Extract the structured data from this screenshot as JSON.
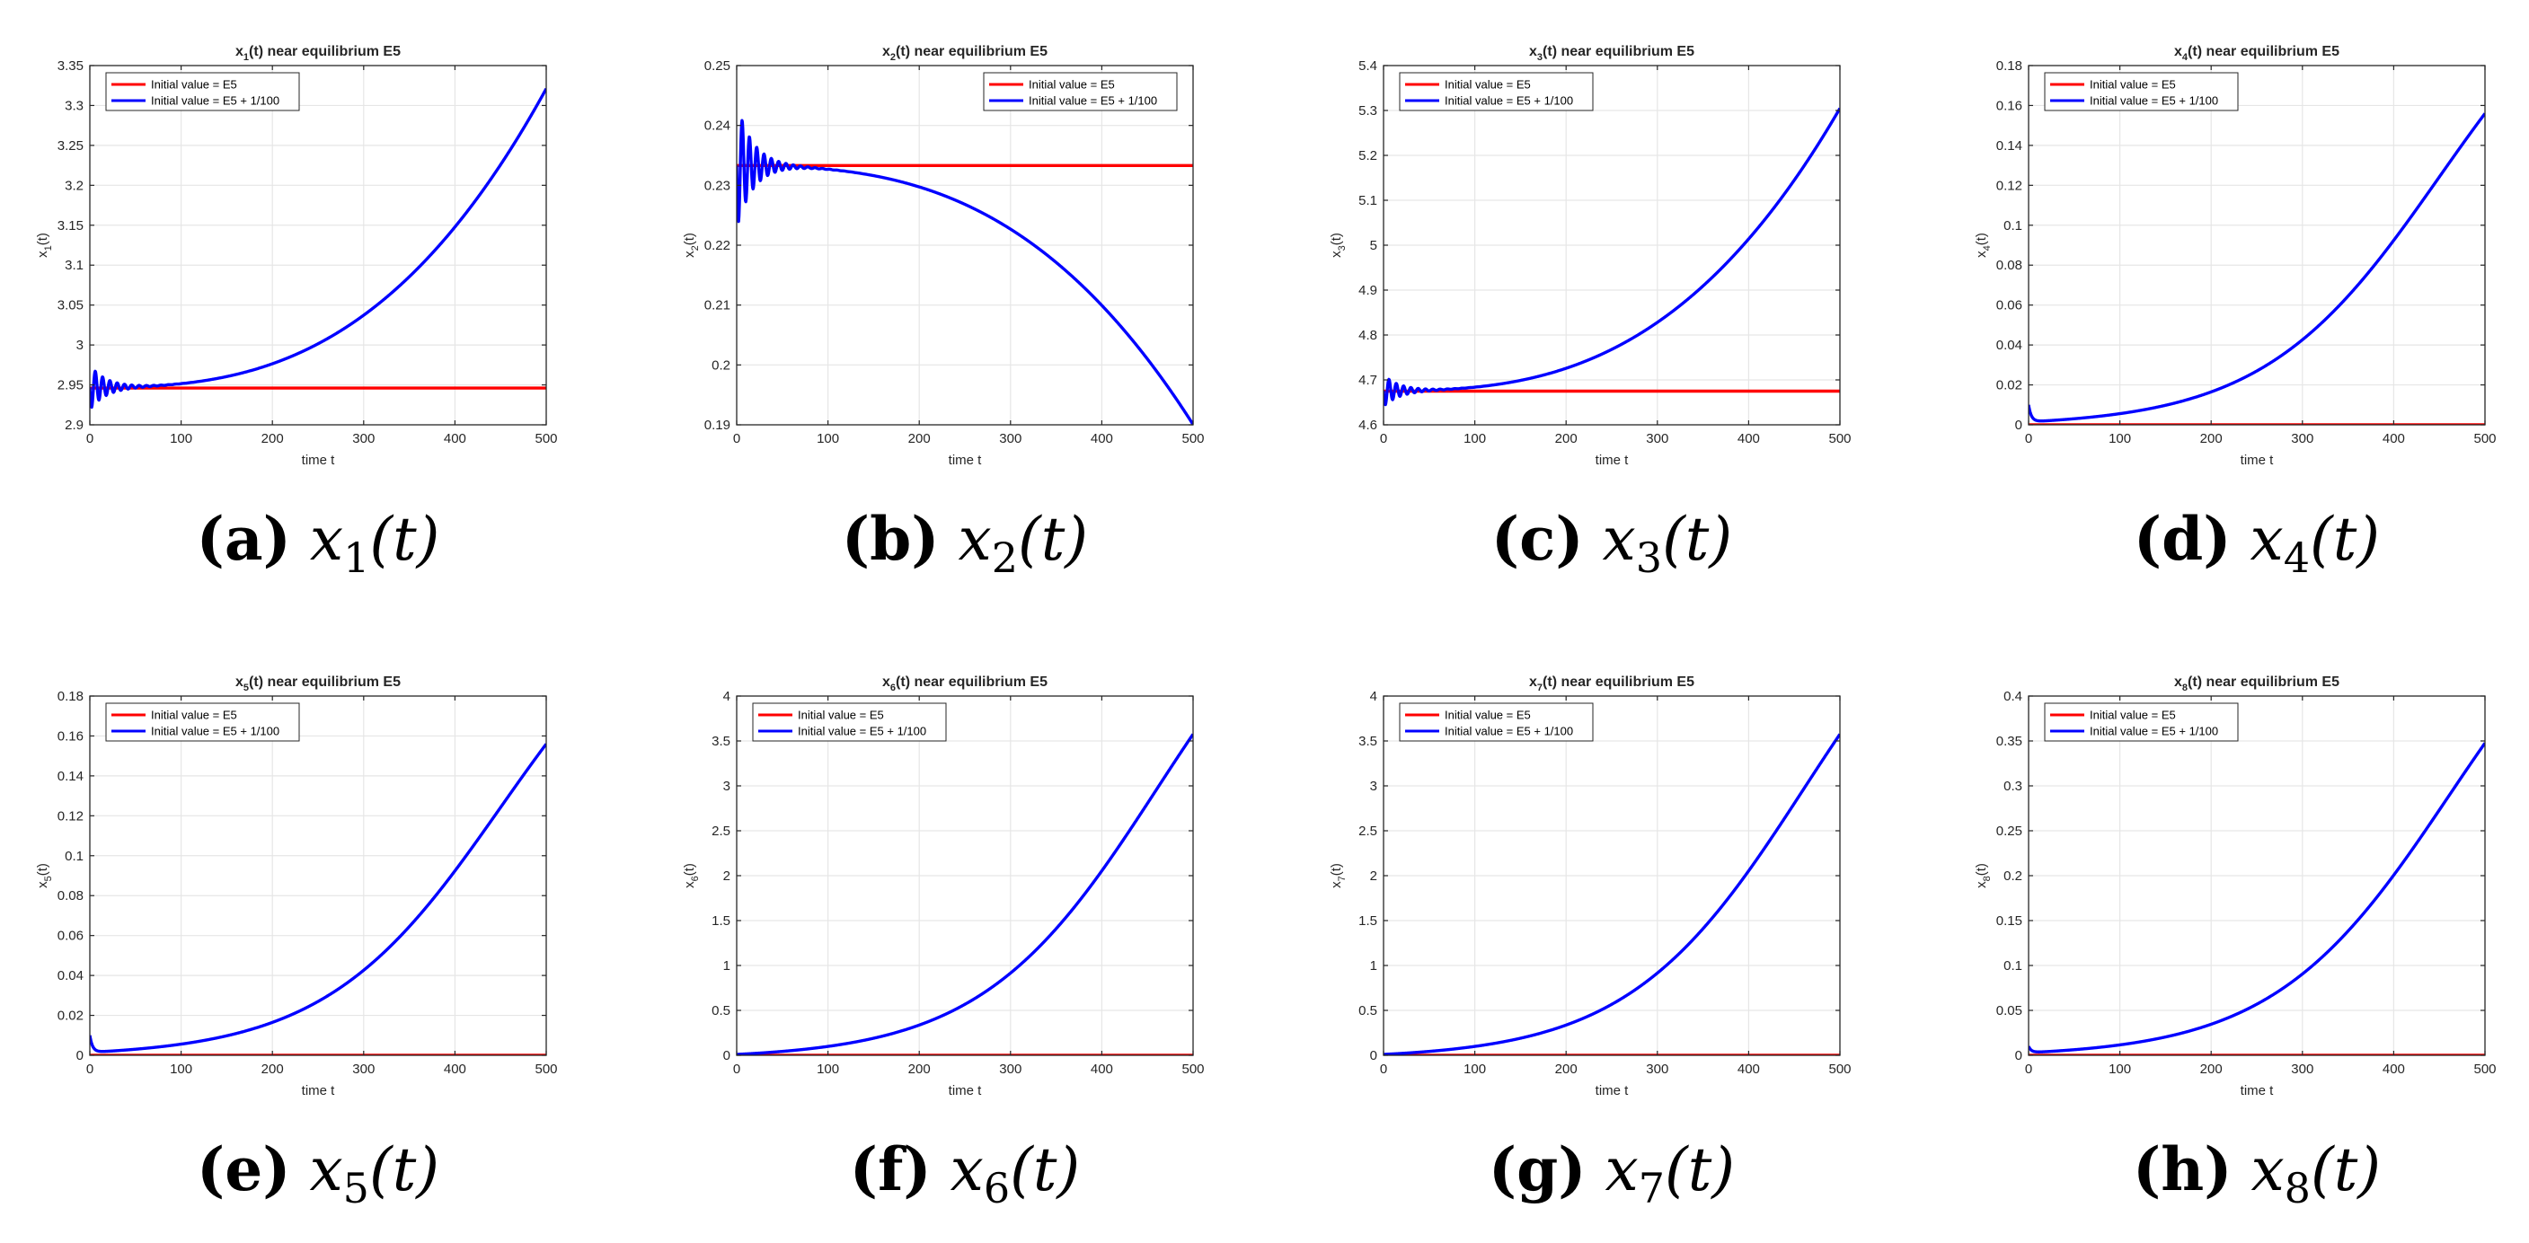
{
  "chart_data": [
    {
      "type": "line",
      "id": "a",
      "title": "x_1(t) near equilibrium E5",
      "title_base": "x",
      "title_sub": "1",
      "title_rest": "(t) near equilibrium E5",
      "xlabel": "time t",
      "ylabel": "x_1(t)",
      "ylabel_base": "x",
      "ylabel_sub": "1",
      "ylabel_rest": "(t)",
      "xlim": [
        0,
        500
      ],
      "ylim": [
        2.9,
        3.35
      ],
      "xticks": [
        0,
        100,
        200,
        300,
        400,
        500
      ],
      "xtick_labels": [
        "0",
        "100",
        "200",
        "300",
        "400",
        "500"
      ],
      "yticks": [
        2.9,
        2.95,
        3,
        3.05,
        3.1,
        3.15,
        3.2,
        3.25,
        3.3,
        3.35
      ],
      "ytick_labels": [
        "2.9",
        "2.95",
        "3",
        "3.05",
        "3.1",
        "3.15",
        "3.2",
        "3.25",
        "3.3",
        "3.35"
      ],
      "grid": true,
      "legend_position": "top-left",
      "caption_letter": "(a)",
      "caption_var": "x",
      "caption_sub": "1",
      "caption_arg": "(t)",
      "series": [
        {
          "name": "Initial value = E5",
          "color": "#ff0000",
          "kind": "const",
          "value": 2.946
        },
        {
          "name": "Initial value = E5 + 1/100",
          "color": "#0000ff",
          "kind": "growth",
          "base": 2.947,
          "slope": 4.5e-06,
          "amp": 0.3718,
          "power": 2.8,
          "osc_amp": 0.028,
          "osc_period": 8,
          "osc_decay": 18
        }
      ]
    },
    {
      "type": "line",
      "id": "b",
      "title": "x_2(t) near equilibrium E5",
      "title_base": "x",
      "title_sub": "2",
      "title_rest": "(t) near equilibrium E5",
      "xlabel": "time t",
      "ylabel": "x_2(t)",
      "ylabel_base": "x",
      "ylabel_sub": "2",
      "ylabel_rest": "(t)",
      "xlim": [
        0,
        500
      ],
      "ylim": [
        0.19,
        0.25
      ],
      "xticks": [
        0,
        100,
        200,
        300,
        400,
        500
      ],
      "xtick_labels": [
        "0",
        "100",
        "200",
        "300",
        "400",
        "500"
      ],
      "yticks": [
        0.19,
        0.2,
        0.21,
        0.22,
        0.23,
        0.24,
        0.25
      ],
      "ytick_labels": [
        "0.19",
        "0.2",
        "0.21",
        "0.22",
        "0.23",
        "0.24",
        "0.25"
      ],
      "grid": true,
      "legend_position": "top-right",
      "caption_letter": "(b)",
      "caption_var": "x",
      "caption_sub": "2",
      "caption_arg": "(t)",
      "series": [
        {
          "name": "Initial value = E5",
          "color": "#ff0000",
          "kind": "const",
          "value": 0.2333
        },
        {
          "name": "Initial value = E5 + 1/100",
          "color": "#0000ff",
          "kind": "growth",
          "base": 0.2333,
          "slope": -1.5e-06,
          "amp": -0.0425,
          "power": 2.8,
          "osc_amp": 0.0105,
          "osc_period": 8,
          "osc_decay": 18
        }
      ]
    },
    {
      "type": "line",
      "id": "c",
      "title": "x_3(t) near equilibrium E5",
      "title_base": "x",
      "title_sub": "3",
      "title_rest": "(t) near equilibrium E5",
      "xlabel": "time t",
      "ylabel": "x_3(t)",
      "ylabel_base": "x",
      "ylabel_sub": "3",
      "ylabel_rest": "(t)",
      "xlim": [
        0,
        500
      ],
      "ylim": [
        4.6,
        5.4
      ],
      "xticks": [
        0,
        100,
        200,
        300,
        400,
        500
      ],
      "xtick_labels": [
        "0",
        "100",
        "200",
        "300",
        "400",
        "500"
      ],
      "yticks": [
        4.6,
        4.7,
        4.8,
        4.9,
        5,
        5.1,
        5.2,
        5.3,
        5.4
      ],
      "ytick_labels": [
        "4.6",
        "4.7",
        "4.8",
        "4.9",
        "5",
        "5.1",
        "5.2",
        "5.3",
        "5.4"
      ],
      "grid": true,
      "legend_position": "top-left",
      "caption_letter": "(c)",
      "caption_var": "x",
      "caption_sub": "3",
      "caption_arg": "(t)",
      "series": [
        {
          "name": "Initial value = E5",
          "color": "#ff0000",
          "kind": "const",
          "value": 4.675
        },
        {
          "name": "Initial value = E5 + 1/100",
          "color": "#0000ff",
          "kind": "growth",
          "base": 4.676,
          "slope": 9.5e-06,
          "amp": 0.624,
          "power": 2.8,
          "osc_amp": 0.035,
          "osc_period": 8,
          "osc_decay": 18
        }
      ]
    },
    {
      "type": "line",
      "id": "d",
      "title": "x_4(t) near equilibrium E5",
      "title_base": "x",
      "title_sub": "4",
      "title_rest": "(t) near equilibrium E5",
      "xlabel": "time t",
      "ylabel": "x_4(t)",
      "ylabel_base": "x",
      "ylabel_sub": "4",
      "ylabel_rest": "(t)",
      "xlim": [
        0,
        500
      ],
      "ylim": [
        0,
        0.18
      ],
      "xticks": [
        0,
        100,
        200,
        300,
        400,
        500
      ],
      "xtick_labels": [
        "0",
        "100",
        "200",
        "300",
        "400",
        "500"
      ],
      "yticks": [
        0,
        0.02,
        0.04,
        0.06,
        0.08,
        0.1,
        0.12,
        0.14,
        0.16,
        0.18
      ],
      "ytick_labels": [
        "0",
        "0.02",
        "0.04",
        "0.06",
        "0.08",
        "0.1",
        "0.12",
        "0.14",
        "0.16",
        "0.18"
      ],
      "grid": true,
      "legend_position": "top-left",
      "caption_letter": "(d)",
      "caption_var": "x",
      "caption_sub": "4",
      "caption_arg": "(t)",
      "series": [
        {
          "name": "Initial value = E5",
          "color": "#ff0000",
          "kind": "const",
          "value": 0
        },
        {
          "name": "Initial value = E5 + 1/100",
          "color": "#0000ff",
          "kind": "logistic",
          "start": 0.01,
          "dip": 0.0015,
          "dip_tau": 3,
          "K": 0.25,
          "k": 0.0104,
          "t0": 450
        }
      ]
    },
    {
      "type": "line",
      "id": "e",
      "title": "x_5(t) near equilibrium E5",
      "title_base": "x",
      "title_sub": "5",
      "title_rest": "(t) near equilibrium E5",
      "xlabel": "time t",
      "ylabel": "x_5(t)",
      "ylabel_base": "x",
      "ylabel_sub": "5",
      "ylabel_rest": "(t)",
      "xlim": [
        0,
        500
      ],
      "ylim": [
        0,
        0.18
      ],
      "xticks": [
        0,
        100,
        200,
        300,
        400,
        500
      ],
      "xtick_labels": [
        "0",
        "100",
        "200",
        "300",
        "400",
        "500"
      ],
      "yticks": [
        0,
        0.02,
        0.04,
        0.06,
        0.08,
        0.1,
        0.12,
        0.14,
        0.16,
        0.18
      ],
      "ytick_labels": [
        "0",
        "0.02",
        "0.04",
        "0.06",
        "0.08",
        "0.1",
        "0.12",
        "0.14",
        "0.16",
        "0.18"
      ],
      "grid": true,
      "legend_position": "top-left",
      "caption_letter": "(e)",
      "caption_var": "x",
      "caption_sub": "5",
      "caption_arg": "(t)",
      "series": [
        {
          "name": "Initial value = E5",
          "color": "#ff0000",
          "kind": "const",
          "value": 0
        },
        {
          "name": "Initial value = E5 + 1/100",
          "color": "#0000ff",
          "kind": "logistic",
          "start": 0.01,
          "dip": 0.0015,
          "dip_tau": 3,
          "K": 0.25,
          "k": 0.0104,
          "t0": 450
        }
      ]
    },
    {
      "type": "line",
      "id": "f",
      "title": "x_6(t) near equilibrium E5",
      "title_base": "x",
      "title_sub": "6",
      "title_rest": "(t) near equilibrium E5",
      "xlabel": "time t",
      "ylabel": "x_6(t)",
      "ylabel_base": "x",
      "ylabel_sub": "6",
      "ylabel_rest": "(t)",
      "xlim": [
        0,
        500
      ],
      "ylim": [
        0,
        4
      ],
      "xticks": [
        0,
        100,
        200,
        300,
        400,
        500
      ],
      "xtick_labels": [
        "0",
        "100",
        "200",
        "300",
        "400",
        "500"
      ],
      "yticks": [
        0,
        0.5,
        1,
        1.5,
        2,
        2.5,
        3,
        3.5,
        4
      ],
      "ytick_labels": [
        "0",
        "0.5",
        "1",
        "1.5",
        "2",
        "2.5",
        "3",
        "3.5",
        "4"
      ],
      "grid": true,
      "legend_position": "top-left",
      "caption_letter": "(f)",
      "caption_var": "x",
      "caption_sub": "6",
      "caption_arg": "(t)",
      "series": [
        {
          "name": "Initial value = E5",
          "color": "#ff0000",
          "kind": "const",
          "value": 0
        },
        {
          "name": "Initial value = E5 + 1/100",
          "color": "#0000ff",
          "kind": "logistic",
          "start": 0.01,
          "dip": 0.01,
          "dip_tau": 3,
          "K": 6,
          "k": 0.0104,
          "t0": 460
        }
      ]
    },
    {
      "type": "line",
      "id": "g",
      "title": "x_7(t) near equilibrium E5",
      "title_base": "x",
      "title_sub": "7",
      "title_rest": "(t) near equilibrium E5",
      "xlabel": "time t",
      "ylabel": "x_7(t)",
      "ylabel_base": "x",
      "ylabel_sub": "7",
      "ylabel_rest": "(t)",
      "xlim": [
        0,
        500
      ],
      "ylim": [
        0,
        4
      ],
      "xticks": [
        0,
        100,
        200,
        300,
        400,
        500
      ],
      "xtick_labels": [
        "0",
        "100",
        "200",
        "300",
        "400",
        "500"
      ],
      "yticks": [
        0,
        0.5,
        1,
        1.5,
        2,
        2.5,
        3,
        3.5,
        4
      ],
      "ytick_labels": [
        "0",
        "0.5",
        "1",
        "1.5",
        "2",
        "2.5",
        "3",
        "3.5",
        "4"
      ],
      "grid": true,
      "legend_position": "top-left",
      "caption_letter": "(g)",
      "caption_var": "x",
      "caption_sub": "7",
      "caption_arg": "(t)",
      "series": [
        {
          "name": "Initial value = E5",
          "color": "#ff0000",
          "kind": "const",
          "value": 0
        },
        {
          "name": "Initial value = E5 + 1/100",
          "color": "#0000ff",
          "kind": "logistic",
          "start": 0.01,
          "dip": 0.01,
          "dip_tau": 3,
          "K": 6,
          "k": 0.0104,
          "t0": 460
        }
      ]
    },
    {
      "type": "line",
      "id": "h",
      "title": "x_8(t) near equilibrium E5",
      "title_base": "x",
      "title_sub": "8",
      "title_rest": "(t) near equilibrium E5",
      "xlabel": "time t",
      "ylabel": "x_8(t)",
      "ylabel_base": "x",
      "ylabel_sub": "8",
      "ylabel_rest": "(t)",
      "xlim": [
        0,
        500
      ],
      "ylim": [
        0,
        0.4
      ],
      "xticks": [
        0,
        100,
        200,
        300,
        400,
        500
      ],
      "xtick_labels": [
        "0",
        "100",
        "200",
        "300",
        "400",
        "500"
      ],
      "yticks": [
        0,
        0.05,
        0.1,
        0.15,
        0.2,
        0.25,
        0.3,
        0.35,
        0.4
      ],
      "ytick_labels": [
        "0",
        "0.05",
        "0.1",
        "0.15",
        "0.2",
        "0.25",
        "0.3",
        "0.35",
        "0.4"
      ],
      "grid": true,
      "legend_position": "top-left",
      "caption_letter": "(h)",
      "caption_var": "x",
      "caption_sub": "8",
      "caption_arg": "(t)",
      "series": [
        {
          "name": "Initial value = E5",
          "color": "#ff0000",
          "kind": "const",
          "value": 0
        },
        {
          "name": "Initial value = E5 + 1/100",
          "color": "#0000ff",
          "kind": "logistic",
          "start": 0.01,
          "dip": 0.003,
          "dip_tau": 3,
          "K": 0.58,
          "k": 0.0104,
          "t0": 460
        }
      ]
    }
  ]
}
